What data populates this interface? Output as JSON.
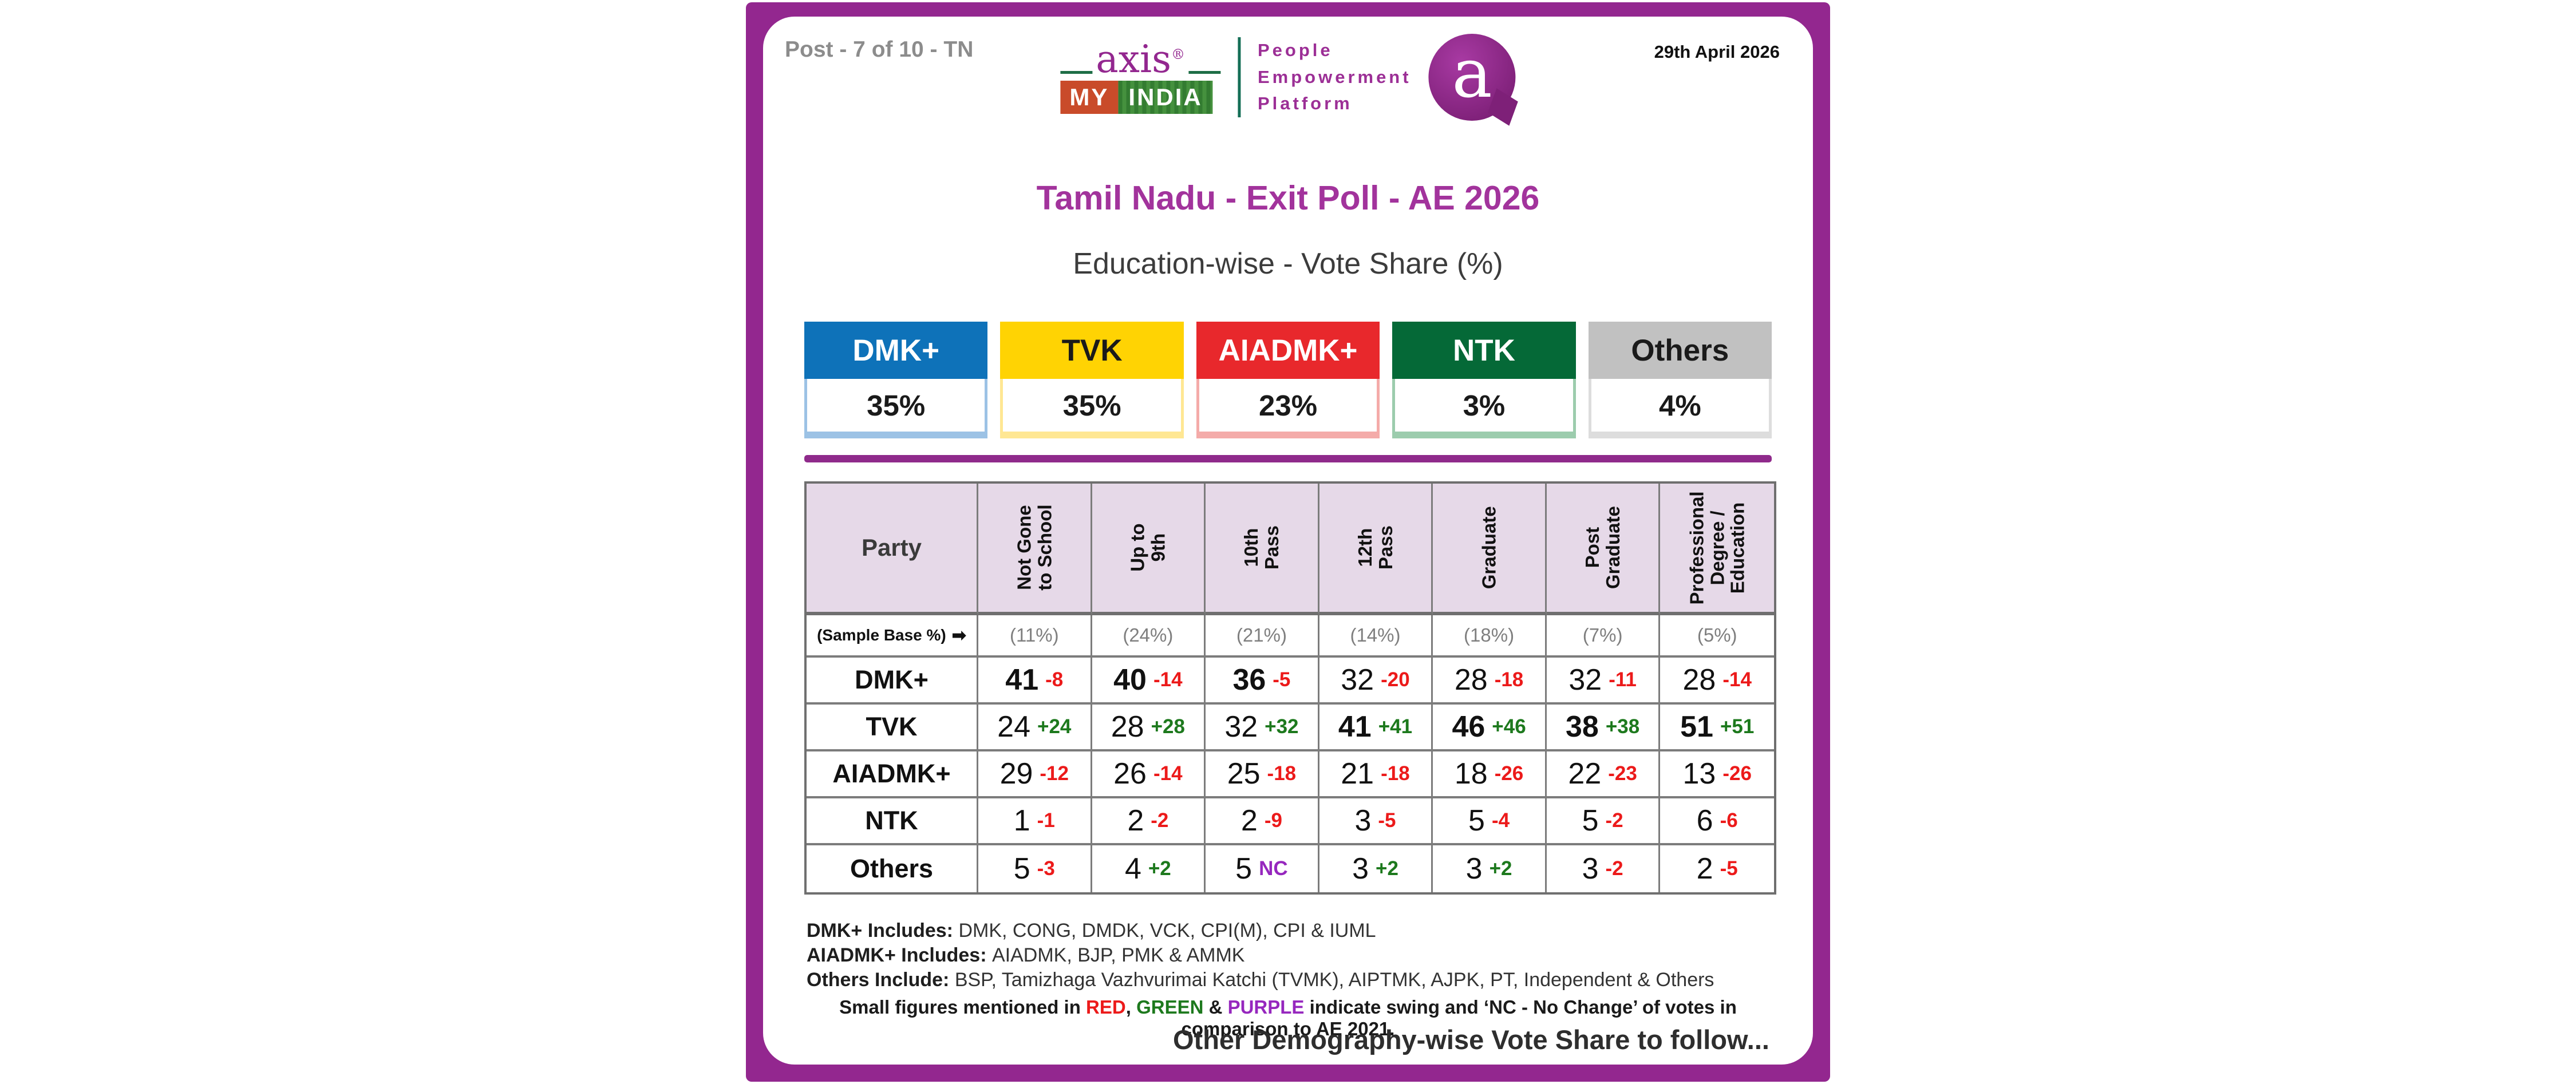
{
  "colors": {
    "brand_purple": "#93278F",
    "title_purple": "#A2339C",
    "table_border": "#7C7C7C",
    "header_lavender": "#E6D9E8",
    "swing": {
      "red": "#EC1A1A",
      "green": "#1D791D",
      "purple": "#9627BE"
    }
  },
  "header": {
    "post_label": "Post - 7 of 10 - TN",
    "date": "29th April 2026",
    "logo": {
      "wordmark": "axis",
      "registered_mark": "®",
      "sub_blocks": {
        "my": "MY",
        "india": "INDIA"
      },
      "tagline_lines": [
        "People",
        "Empowerment",
        "Platform"
      ],
      "bubble_letter": "a"
    }
  },
  "title": "Tamil Nadu - Exit Poll - AE 2026",
  "subtitle": "Education-wise - Vote Share (%)",
  "summary_cards": [
    {
      "party": "DMK+",
      "share": "35%",
      "bg": "#0E72B9",
      "fg": "#FFFFFF",
      "light": "#9CC2E5"
    },
    {
      "party": "TVK",
      "share": "35%",
      "bg": "#FFD303",
      "fg": "#1A1A1A",
      "light": "#FFE793"
    },
    {
      "party": "AIADMK+",
      "share": "23%",
      "bg": "#E8282C",
      "fg": "#FFFFFF",
      "light": "#F4ABA9"
    },
    {
      "party": "NTK",
      "share": "3%",
      "bg": "#056937",
      "fg": "#FFFFFF",
      "light": "#9CCCAD"
    },
    {
      "party": "Others",
      "share": "4%",
      "bg": "#C1C1C1",
      "fg": "#1A1A1A",
      "light": "#DDDDDD"
    }
  ],
  "table": {
    "party_header": "Party",
    "columns": [
      "Not Gone\nto School",
      "Up to\n9th",
      "10th\nPass",
      "12th\nPass",
      "Graduate",
      "Post\nGraduate",
      "Professional\nDegree /\nEducation"
    ],
    "sample_base_label": "(Sample Base %)",
    "sample_base_arrow": "➡",
    "sample_base": [
      "(11%)",
      "(24%)",
      "(21%)",
      "(14%)",
      "(18%)",
      "(7%)",
      "(5%)"
    ],
    "rows": [
      {
        "party": "DMK+",
        "cells": [
          {
            "v": "41",
            "s": "-8",
            "c": "red",
            "b": true
          },
          {
            "v": "40",
            "s": "-14",
            "c": "red",
            "b": true
          },
          {
            "v": "36",
            "s": "-5",
            "c": "red",
            "b": true
          },
          {
            "v": "32",
            "s": "-20",
            "c": "red",
            "b": false
          },
          {
            "v": "28",
            "s": "-18",
            "c": "red",
            "b": false
          },
          {
            "v": "32",
            "s": "-11",
            "c": "red",
            "b": false
          },
          {
            "v": "28",
            "s": "-14",
            "c": "red",
            "b": false
          }
        ]
      },
      {
        "party": "TVK",
        "cells": [
          {
            "v": "24",
            "s": "+24",
            "c": "green",
            "b": false
          },
          {
            "v": "28",
            "s": "+28",
            "c": "green",
            "b": false
          },
          {
            "v": "32",
            "s": "+32",
            "c": "green",
            "b": false
          },
          {
            "v": "41",
            "s": "+41",
            "c": "green",
            "b": true
          },
          {
            "v": "46",
            "s": "+46",
            "c": "green",
            "b": true
          },
          {
            "v": "38",
            "s": "+38",
            "c": "green",
            "b": true
          },
          {
            "v": "51",
            "s": "+51",
            "c": "green",
            "b": true
          }
        ]
      },
      {
        "party": "AIADMK+",
        "cells": [
          {
            "v": "29",
            "s": "-12",
            "c": "red",
            "b": false
          },
          {
            "v": "26",
            "s": "-14",
            "c": "red",
            "b": false
          },
          {
            "v": "25",
            "s": "-18",
            "c": "red",
            "b": false
          },
          {
            "v": "21",
            "s": "-18",
            "c": "red",
            "b": false
          },
          {
            "v": "18",
            "s": "-26",
            "c": "red",
            "b": false
          },
          {
            "v": "22",
            "s": "-23",
            "c": "red",
            "b": false
          },
          {
            "v": "13",
            "s": "-26",
            "c": "red",
            "b": false
          }
        ]
      },
      {
        "party": "NTK",
        "cells": [
          {
            "v": "1",
            "s": "-1",
            "c": "red",
            "b": false
          },
          {
            "v": "2",
            "s": "-2",
            "c": "red",
            "b": false
          },
          {
            "v": "2",
            "s": "-9",
            "c": "red",
            "b": false
          },
          {
            "v": "3",
            "s": "-5",
            "c": "red",
            "b": false
          },
          {
            "v": "5",
            "s": "-4",
            "c": "red",
            "b": false
          },
          {
            "v": "5",
            "s": "-2",
            "c": "red",
            "b": false
          },
          {
            "v": "6",
            "s": "-6",
            "c": "red",
            "b": false
          }
        ]
      },
      {
        "party": "Others",
        "cells": [
          {
            "v": "5",
            "s": "-3",
            "c": "red",
            "b": false
          },
          {
            "v": "4",
            "s": "+2",
            "c": "green",
            "b": false
          },
          {
            "v": "5",
            "s": "NC",
            "c": "purple",
            "b": false
          },
          {
            "v": "3",
            "s": "+2",
            "c": "green",
            "b": false
          },
          {
            "v": "3",
            "s": "+2",
            "c": "green",
            "b": false
          },
          {
            "v": "3",
            "s": "-2",
            "c": "red",
            "b": false
          },
          {
            "v": "2",
            "s": "-5",
            "c": "red",
            "b": false
          }
        ]
      }
    ]
  },
  "footnotes": [
    {
      "label": "DMK+ Includes:",
      "text": "DMK, CONG, DMDK, VCK, CPI(M), CPI & IUML"
    },
    {
      "label": "AIADMK+ Includes:",
      "text": "AIADMK, BJP, PMK & AMMK"
    },
    {
      "label": "Others Include:",
      "text": "BSP, Tamizhaga Vazhvurimai Katchi (TVMK), AIPTMK, AJPK, PT, Independent & Others"
    }
  ],
  "swing_note_parts": [
    {
      "text": "Small figures mentioned in ",
      "color": "#1A1A1A"
    },
    {
      "text": "RED",
      "color": "#EC1A1A"
    },
    {
      "text": ", ",
      "color": "#1A1A1A"
    },
    {
      "text": "GREEN",
      "color": "#1D791D"
    },
    {
      "text": " & ",
      "color": "#1A1A1A"
    },
    {
      "text": "PURPLE",
      "color": "#9627BE"
    },
    {
      "text": " indicate swing and ‘NC - No Change’ of votes in comparison to AE 2021.",
      "color": "#1A1A1A"
    }
  ],
  "footer_text": "Other Demography-wise Vote Share to follow...",
  "chart_data": {
    "type": "table",
    "title": "Tamil Nadu - Exit Poll - AE 2026",
    "subtitle": "Education-wise - Vote Share (%)",
    "overall_vote_share_pct": {
      "DMK+": 35,
      "TVK": 35,
      "AIADMK+": 23,
      "NTK": 3,
      "Others": 4
    },
    "categories": [
      "Not Gone to School",
      "Up to 9th",
      "10th Pass",
      "12th Pass",
      "Graduate",
      "Post Graduate",
      "Professional Degree / Education"
    ],
    "sample_base_pct": [
      11,
      24,
      21,
      14,
      18,
      7,
      5
    ],
    "series": [
      {
        "name": "DMK+",
        "values": [
          41,
          40,
          36,
          32,
          28,
          32,
          28
        ],
        "swing_vs_AE2021": [
          -8,
          -14,
          -5,
          -20,
          -18,
          -11,
          -14
        ]
      },
      {
        "name": "TVK",
        "values": [
          24,
          28,
          32,
          41,
          46,
          38,
          51
        ],
        "swing_vs_AE2021": [
          24,
          28,
          32,
          41,
          46,
          38,
          51
        ]
      },
      {
        "name": "AIADMK+",
        "values": [
          29,
          26,
          25,
          21,
          18,
          22,
          13
        ],
        "swing_vs_AE2021": [
          -12,
          -14,
          -18,
          -18,
          -26,
          -23,
          -26
        ]
      },
      {
        "name": "NTK",
        "values": [
          1,
          2,
          2,
          3,
          5,
          5,
          6
        ],
        "swing_vs_AE2021": [
          -1,
          -2,
          -9,
          -5,
          -4,
          -2,
          -6
        ]
      },
      {
        "name": "Others",
        "values": [
          5,
          4,
          5,
          3,
          3,
          3,
          2
        ],
        "swing_vs_AE2021": [
          -3,
          2,
          "NC",
          2,
          2,
          -2,
          -5
        ]
      }
    ]
  }
}
